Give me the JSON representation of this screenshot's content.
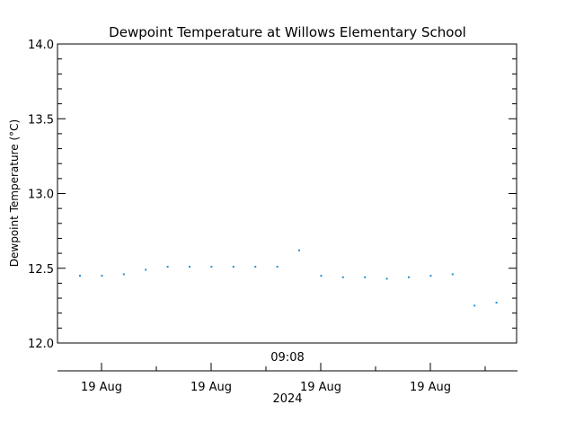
{
  "chart_data": {
    "type": "scatter",
    "title": "Dewpoint Temperature at Willows Elementary School",
    "ylabel": "Dewpoint Temperature (°C)",
    "xlabel": "2024",
    "time_marker": "09:08",
    "ylim": [
      12.0,
      14.0
    ],
    "yticks": [
      "12.0",
      "12.5",
      "13.0",
      "13.5",
      "14.0"
    ],
    "xtick_labels": [
      "19 Aug",
      "19 Aug",
      "19 Aug",
      "19 Aug"
    ],
    "grid": false,
    "point_color": "#1f8fd6",
    "series": [
      {
        "values": [
          12.45,
          12.45,
          12.46,
          12.49,
          12.51,
          12.51,
          12.51,
          12.51,
          12.51,
          12.51,
          12.62,
          12.45,
          12.44,
          12.44,
          12.43,
          12.44,
          12.45,
          12.46,
          12.25,
          12.27
        ]
      }
    ]
  }
}
